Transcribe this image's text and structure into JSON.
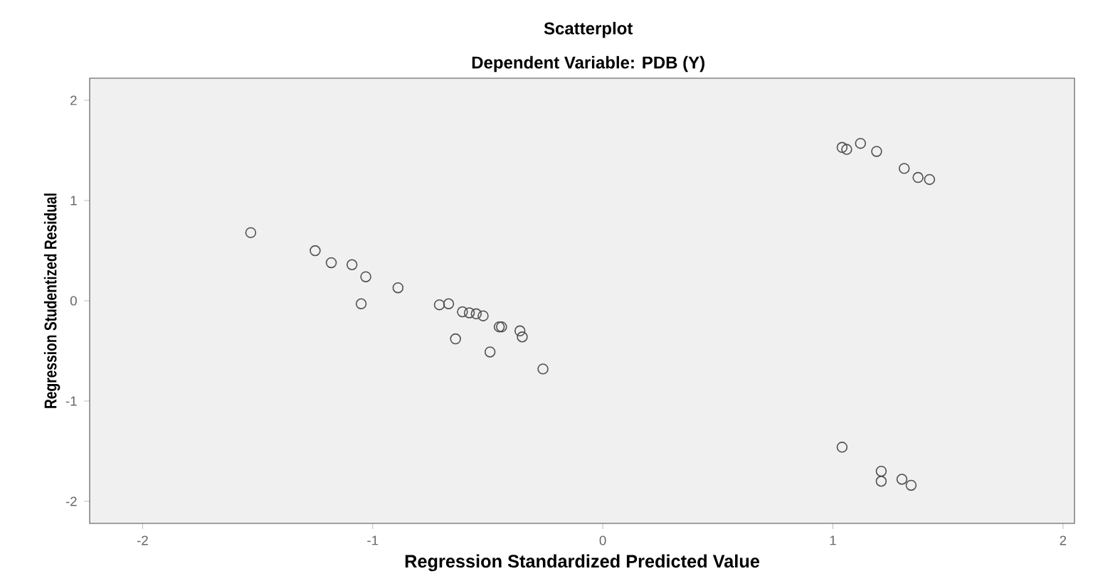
{
  "chart_data": {
    "type": "scatter",
    "title": "Scatterplot",
    "subtitle": "Dependent Variable: PDB (Y)",
    "xlabel": "Regression Standardized Predicted Value",
    "ylabel": "Regression Studentized Residual",
    "xlim": [
      -2.23,
      2.05
    ],
    "ylim": [
      -2.22,
      2.22
    ],
    "xticks": [
      -2,
      -1,
      0,
      1,
      2
    ],
    "yticks": [
      -2,
      -1,
      0,
      1,
      2
    ],
    "grid": false,
    "marker": "circle",
    "series": [
      {
        "color": "#505050",
        "x": [
          -1.53,
          -1.25,
          -1.18,
          -1.09,
          -1.03,
          -1.05,
          -0.89,
          -0.71,
          -0.67,
          -0.61,
          -0.58,
          -0.55,
          -0.52,
          -0.64,
          -0.45,
          -0.44,
          -0.36,
          -0.35,
          -0.49,
          -0.26,
          1.04,
          1.06,
          1.12,
          1.19,
          1.31,
          1.37,
          1.42,
          1.04,
          1.21,
          1.21,
          1.3,
          1.34
        ],
        "values": [
          0.68,
          0.5,
          0.38,
          0.36,
          0.24,
          -0.03,
          0.13,
          -0.04,
          -0.03,
          -0.11,
          -0.12,
          -0.13,
          -0.15,
          -0.38,
          -0.26,
          -0.26,
          -0.3,
          -0.36,
          -0.51,
          -0.68,
          1.53,
          1.51,
          1.57,
          1.49,
          1.32,
          1.23,
          1.21,
          -1.46,
          -1.7,
          -1.8,
          -1.78,
          -1.84
        ]
      }
    ]
  }
}
